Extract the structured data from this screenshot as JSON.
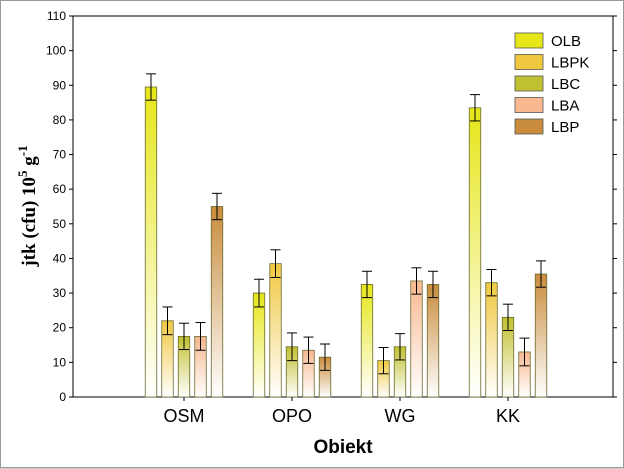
{
  "chart_data": {
    "type": "bar",
    "categories": [
      "OSM",
      "OPO",
      "WG",
      "KK"
    ],
    "series": [
      {
        "name": "OLB",
        "color": "#e6e619",
        "values": [
          89.5,
          30.0,
          32.5,
          83.5
        ],
        "errors": [
          3.8,
          4.0,
          3.8,
          3.8
        ]
      },
      {
        "name": "LBPK",
        "color": "#f0c840",
        "values": [
          22.0,
          38.5,
          10.5,
          33.0
        ],
        "errors": [
          4.0,
          4.0,
          3.8,
          3.8
        ]
      },
      {
        "name": "LBC",
        "color": "#c0c030",
        "values": [
          17.5,
          14.5,
          14.5,
          23.0
        ],
        "errors": [
          3.8,
          4.0,
          3.8,
          3.8
        ]
      },
      {
        "name": "LBA",
        "color": "#f8b890",
        "values": [
          17.5,
          13.5,
          33.5,
          13.0
        ],
        "errors": [
          4.0,
          3.8,
          3.8,
          4.0
        ]
      },
      {
        "name": "LBP",
        "color": "#c88c3c",
        "values": [
          55.0,
          11.5,
          32.5,
          35.5
        ],
        "errors": [
          3.8,
          3.8,
          3.8,
          3.8
        ]
      }
    ],
    "xlabel": "Obiekt",
    "ylabel": "jtk (cfu) 10",
    "ylabel_sup_5": "5",
    "ylabel_unit": "g",
    "ylabel_sup_neg1": "-1",
    "ylim": [
      0,
      110
    ],
    "yticks": [
      0,
      10,
      20,
      30,
      40,
      50,
      60,
      70,
      80,
      90,
      100,
      110
    ],
    "grid": false,
    "legend_position": "top-right"
  }
}
